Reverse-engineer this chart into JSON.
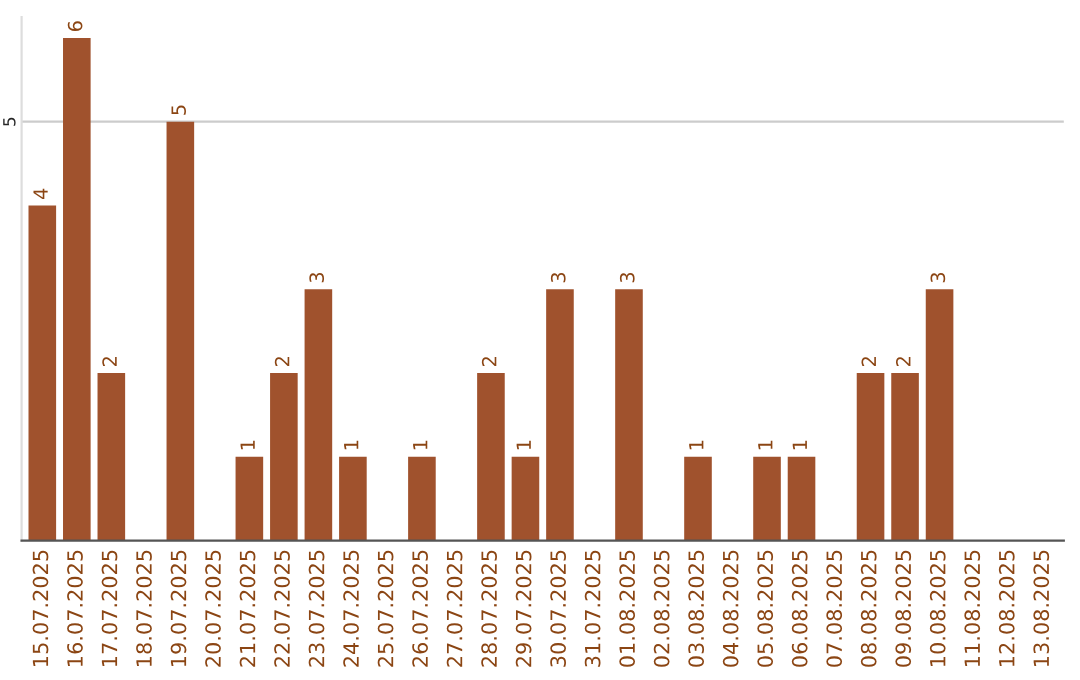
{
  "chart_data": {
    "type": "bar",
    "categories": [
      "15.07.2025",
      "16.07.2025",
      "17.07.2025",
      "18.07.2025",
      "19.07.2025",
      "20.07.2025",
      "21.07.2025",
      "22.07.2025",
      "23.07.2025",
      "24.07.2025",
      "25.07.2025",
      "26.07.2025",
      "27.07.2025",
      "28.07.2025",
      "29.07.2025",
      "30.07.2025",
      "31.07.2025",
      "01.08.2025",
      "02.08.2025",
      "03.08.2025",
      "04.08.2025",
      "05.08.2025",
      "06.08.2025",
      "07.08.2025",
      "08.08.2025",
      "09.08.2025",
      "10.08.2025",
      "11.08.2025",
      "12.08.2025",
      "13.08.2025"
    ],
    "values": [
      4,
      6,
      2,
      0,
      5,
      0,
      1,
      2,
      3,
      1,
      0,
      1,
      0,
      2,
      1,
      3,
      0,
      3,
      0,
      1,
      0,
      1,
      1,
      0,
      2,
      2,
      3,
      0,
      0,
      0
    ],
    "value_labels": [
      "4",
      "6",
      "2",
      null,
      "5",
      null,
      "1",
      "2",
      "3",
      "1",
      null,
      "1",
      null,
      "2",
      "1",
      "3",
      null,
      "3",
      null,
      "1",
      null,
      "1",
      "1",
      null,
      "2",
      "2",
      "3",
      null,
      null,
      null
    ],
    "color": "#a0522d",
    "ylim": [
      0,
      6.25
    ],
    "yticks": [
      5
    ],
    "grid": "y",
    "legend": false
  }
}
